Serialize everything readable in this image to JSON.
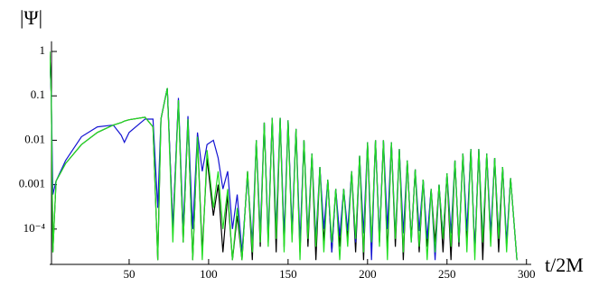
{
  "chart_data": {
    "type": "line",
    "x_label": "t/2M",
    "y_label": "|Ψ|",
    "log_y": true,
    "xlim": [
      0,
      303
    ],
    "ylim": [
      1.6e-05,
      1.7
    ],
    "xticks": [
      50,
      100,
      150,
      200,
      250,
      300
    ],
    "yticks": [
      1,
      0.1,
      0.01,
      0.001,
      {
        "value": 0.0001,
        "label": "10⁻⁴"
      }
    ],
    "x": [
      0,
      1,
      2,
      4,
      10,
      20,
      30,
      40,
      45,
      47,
      50,
      60,
      65,
      68,
      70,
      74,
      77.5,
      81,
      84,
      87,
      90,
      93,
      96,
      99,
      103,
      106,
      109,
      112,
      115,
      118,
      121,
      124.5,
      127.5,
      130,
      132.5,
      135,
      137.5,
      140,
      142.5,
      145,
      147.5,
      150,
      152.5,
      155,
      157.5,
      160,
      162.5,
      165,
      167.5,
      170,
      172.5,
      175,
      177.5,
      180,
      182.5,
      185,
      187.5,
      190,
      192.5,
      195,
      197.5,
      200,
      202.5,
      205,
      207.5,
      210,
      212.5,
      215,
      217.5,
      220,
      222.5,
      225,
      227.5,
      230,
      232.5,
      235,
      237.5,
      240,
      242.5,
      245,
      247.5,
      250,
      252.5,
      255,
      257.5,
      260,
      262.5,
      265,
      267.5,
      270,
      272.5,
      275,
      277.5,
      280,
      282.5,
      285,
      287.5,
      290,
      294
    ],
    "series": [
      {
        "color": "#000000",
        "values": [
          1,
          0.1,
          3e-05,
          0.0012,
          0.003,
          0.008,
          0.015,
          0.022,
          0.025,
          0.027,
          0.029,
          0.033,
          0.02,
          2e-05,
          0.03,
          0.15,
          0.0001,
          0.08,
          5e-05,
          0.03,
          2e-05,
          0.012,
          3e-05,
          0.004,
          0.0002,
          0.001,
          3e-05,
          0.0006,
          2e-05,
          0.0002,
          2e-05,
          0.002,
          2e-05,
          0.01,
          4e-05,
          0.025,
          5e-05,
          0.032,
          3e-05,
          0.032,
          4e-05,
          0.028,
          6e-05,
          0.018,
          3e-05,
          0.01,
          4e-05,
          0.005,
          2e-05,
          0.0025,
          5e-05,
          0.0013,
          3e-05,
          0.0008,
          4e-05,
          0.0008,
          6e-05,
          0.002,
          3e-05,
          0.0045,
          2e-05,
          0.009,
          4e-05,
          0.01,
          5e-05,
          0.01,
          3e-05,
          0.009,
          4e-05,
          0.0063,
          2e-05,
          0.0035,
          6e-05,
          0.0022,
          3e-05,
          0.0013,
          4e-05,
          0.0008,
          5e-05,
          0.001,
          3e-05,
          0.0018,
          2e-05,
          0.0035,
          4e-05,
          0.005,
          6e-05,
          0.0063,
          3e-05,
          0.0063,
          2e-05,
          0.005,
          5e-05,
          0.004,
          3e-05,
          0.0025,
          4e-05,
          0.0014,
          2e-05
        ]
      },
      {
        "color": "#1414d2",
        "values": [
          0.8,
          0.1,
          0.0006,
          0.0012,
          0.0035,
          0.012,
          0.02,
          0.022,
          0.013,
          0.009,
          0.015,
          0.03,
          0.03,
          0.0003,
          0.03,
          0.15,
          0.0001,
          0.09,
          0.0001,
          0.035,
          0.0001,
          0.015,
          0.002,
          0.008,
          0.01,
          0.004,
          0.0008,
          0.002,
          0.0001,
          0.0006,
          3e-05,
          0.0015,
          5e-05,
          0.01,
          8e-05,
          0.025,
          6e-05,
          0.032,
          0.0001,
          0.032,
          7e-05,
          0.028,
          9e-05,
          0.018,
          5e-05,
          0.01,
          8e-05,
          0.005,
          6e-05,
          0.0025,
          0.0001,
          0.0013,
          3e-05,
          0.0008,
          7e-05,
          0.0008,
          9e-05,
          0.002,
          5e-05,
          0.0045,
          8e-05,
          0.009,
          2e-05,
          0.01,
          6e-05,
          0.01,
          0.0001,
          0.009,
          7e-05,
          0.0063,
          8e-05,
          0.0035,
          5e-05,
          0.0022,
          9e-05,
          0.0013,
          6e-05,
          0.0008,
          2e-05,
          0.001,
          7e-05,
          0.0018,
          8e-05,
          0.0035,
          5e-05,
          0.005,
          9e-05,
          0.0063,
          3e-05,
          0.0063,
          6e-05,
          0.005,
          8e-05,
          0.004,
          7e-05,
          0.0025,
          5e-05,
          0.0014,
          2e-05
        ]
      },
      {
        "color": "#22dd22",
        "values": [
          1,
          0.1,
          3e-05,
          0.0012,
          0.003,
          0.008,
          0.015,
          0.022,
          0.025,
          0.027,
          0.029,
          0.033,
          0.02,
          2e-05,
          0.03,
          0.15,
          5e-05,
          0.08,
          5e-05,
          0.03,
          2e-05,
          0.012,
          2e-05,
          0.006,
          0.0003,
          0.002,
          0.0001,
          0.0008,
          2e-05,
          0.0003,
          2e-05,
          0.002,
          3e-05,
          0.01,
          5e-05,
          0.025,
          4e-05,
          0.032,
          6e-05,
          0.032,
          3e-05,
          0.028,
          5e-05,
          0.018,
          2e-05,
          0.01,
          6e-05,
          0.005,
          4e-05,
          0.0025,
          3e-05,
          0.0013,
          5e-05,
          0.0008,
          2e-05,
          0.0008,
          4e-05,
          0.002,
          6e-05,
          0.0045,
          3e-05,
          0.009,
          5e-05,
          0.01,
          4e-05,
          0.01,
          2e-05,
          0.009,
          6e-05,
          0.0063,
          3e-05,
          0.0035,
          5e-05,
          0.0022,
          4e-05,
          0.0013,
          2e-05,
          0.0008,
          3e-05,
          0.001,
          6e-05,
          0.0018,
          4e-05,
          0.0035,
          5e-05,
          0.005,
          3e-05,
          0.0063,
          2e-05,
          0.0063,
          5e-05,
          0.005,
          4e-05,
          0.004,
          6e-05,
          0.0025,
          3e-05,
          0.0014,
          2e-05
        ]
      }
    ]
  }
}
